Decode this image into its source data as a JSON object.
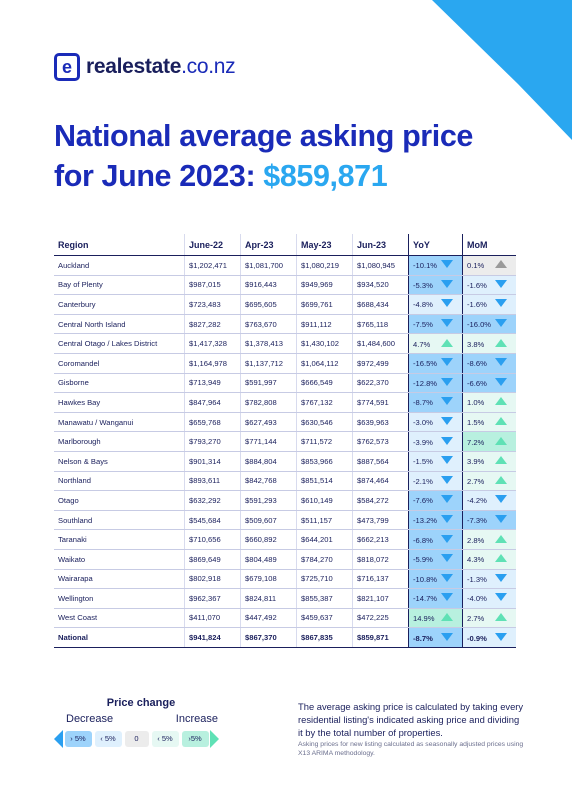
{
  "brand": {
    "name": "realestate",
    "domain": ".co.nz",
    "mark": "e"
  },
  "headline": {
    "line1": "National average asking price",
    "line2_prefix": "for June 2023: ",
    "amount": "$859,871"
  },
  "table": {
    "headers": [
      "Region",
      "June-22",
      "Apr-23",
      "May-23",
      "Jun-23",
      "YoY",
      "MoM"
    ],
    "rows": [
      {
        "region": "Auckland",
        "jun22": "$1,202,471",
        "apr23": "$1,081,700",
        "may23": "$1,080,219",
        "jun23": "$1,080,945",
        "yoy": "-10.1%",
        "mom": "0.1%"
      },
      {
        "region": "Bay of Plenty",
        "jun22": "$987,015",
        "apr23": "$916,443",
        "may23": "$949,969",
        "jun23": "$934,520",
        "yoy": "-5.3%",
        "mom": "-1.6%"
      },
      {
        "region": "Canterbury",
        "jun22": "$723,483",
        "apr23": "$695,605",
        "may23": "$699,761",
        "jun23": "$688,434",
        "yoy": "-4.8%",
        "mom": "-1.6%"
      },
      {
        "region": "Central North Island",
        "jun22": "$827,282",
        "apr23": "$763,670",
        "may23": "$911,112",
        "jun23": "$765,118",
        "yoy": "-7.5%",
        "mom": "-16.0%"
      },
      {
        "region": "Central Otago / Lakes District",
        "jun22": "$1,417,328",
        "apr23": "$1,378,413",
        "may23": "$1,430,102",
        "jun23": "$1,484,600",
        "yoy": "4.7%",
        "mom": "3.8%"
      },
      {
        "region": "Coromandel",
        "jun22": "$1,164,978",
        "apr23": "$1,137,712",
        "may23": "$1,064,112",
        "jun23": "$972,499",
        "yoy": "-16.5%",
        "mom": "-8.6%"
      },
      {
        "region": "Gisborne",
        "jun22": "$713,949",
        "apr23": "$591,997",
        "may23": "$666,549",
        "jun23": "$622,370",
        "yoy": "-12.8%",
        "mom": "-6.6%"
      },
      {
        "region": "Hawkes Bay",
        "jun22": "$847,964",
        "apr23": "$782,808",
        "may23": "$767,132",
        "jun23": "$774,591",
        "yoy": "-8.7%",
        "mom": "1.0%"
      },
      {
        "region": "Manawatu / Wanganui",
        "jun22": "$659,768",
        "apr23": "$627,493",
        "may23": "$630,546",
        "jun23": "$639,963",
        "yoy": "-3.0%",
        "mom": "1.5%"
      },
      {
        "region": "Marlborough",
        "jun22": "$793,270",
        "apr23": "$771,144",
        "may23": "$711,572",
        "jun23": "$762,573",
        "yoy": "-3.9%",
        "mom": "7.2%"
      },
      {
        "region": "Nelson & Bays",
        "jun22": "$901,314",
        "apr23": "$884,804",
        "may23": "$853,966",
        "jun23": "$887,564",
        "yoy": "-1.5%",
        "mom": "3.9%"
      },
      {
        "region": "Northland",
        "jun22": "$893,611",
        "apr23": "$842,768",
        "may23": "$851,514",
        "jun23": "$874,464",
        "yoy": "-2.1%",
        "mom": "2.7%"
      },
      {
        "region": "Otago",
        "jun22": "$632,292",
        "apr23": "$591,293",
        "may23": "$610,149",
        "jun23": "$584,272",
        "yoy": "-7.6%",
        "mom": "-4.2%"
      },
      {
        "region": "Southland",
        "jun22": "$545,684",
        "apr23": "$509,607",
        "may23": "$511,157",
        "jun23": "$473,799",
        "yoy": "-13.2%",
        "mom": "-7.3%"
      },
      {
        "region": "Taranaki",
        "jun22": "$710,656",
        "apr23": "$660,892",
        "may23": "$644,201",
        "jun23": "$662,213",
        "yoy": "-6.8%",
        "mom": "2.8%"
      },
      {
        "region": "Waikato",
        "jun22": "$869,649",
        "apr23": "$804,489",
        "may23": "$784,270",
        "jun23": "$818,072",
        "yoy": "-5.9%",
        "mom": "4.3%"
      },
      {
        "region": "Wairarapa",
        "jun22": "$802,918",
        "apr23": "$679,108",
        "may23": "$725,710",
        "jun23": "$716,137",
        "yoy": "-10.8%",
        "mom": "-1.3%"
      },
      {
        "region": "Wellington",
        "jun22": "$962,367",
        "apr23": "$824,811",
        "may23": "$855,387",
        "jun23": "$821,107",
        "yoy": "-14.7%",
        "mom": "-4.0%"
      },
      {
        "region": "West Coast",
        "jun22": "$411,070",
        "apr23": "$447,492",
        "may23": "$459,637",
        "jun23": "$472,225",
        "yoy": "14.9%",
        "mom": "2.7%"
      },
      {
        "region": "National",
        "jun22": "$941,824",
        "apr23": "$867,370",
        "may23": "$867,835",
        "jun23": "$859,871",
        "yoy": "-8.7%",
        "mom": "-0.9%"
      }
    ]
  },
  "legend": {
    "title": "Price change",
    "decrease": "Decrease",
    "increase": "Increase",
    "chips": [
      "› 5%",
      "‹ 5%",
      "0",
      "‹ 5%",
      "›5%"
    ]
  },
  "notes": {
    "main": "The average asking price is calculated by taking every residential listing's indicated asking price and dividing it by the total number of properties.",
    "small": "Asking prices for new listing calculated as seasonally adjusted prices using X13 ARIMA methodology."
  },
  "colors": {
    "navy": "#1a1f5c",
    "brand_blue": "#1a2bb8",
    "accent_blue": "#2aa7f0",
    "decrease_strong": "#9dd3fb",
    "decrease_light": "#dff0fd",
    "increase_light": "#e6f8f3",
    "increase_strong": "#b8f0df",
    "neutral": "#ececec"
  }
}
